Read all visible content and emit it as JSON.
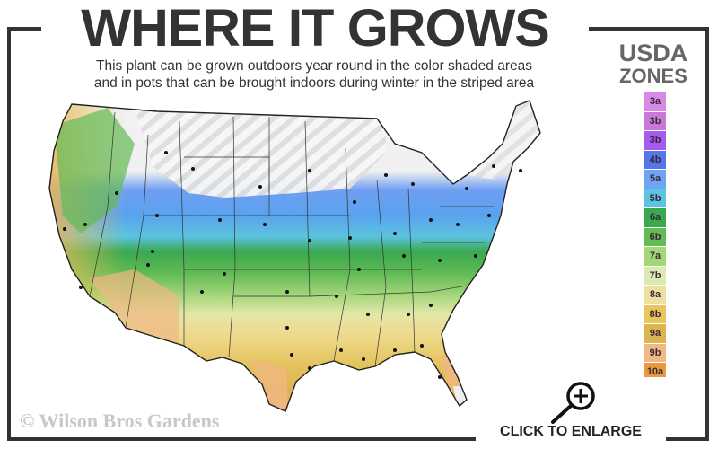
{
  "header": {
    "title": "WHERE IT GROWS",
    "subtitle_line1": "This plant can be grown outdoors year round in the color shaded areas",
    "subtitle_line2": "and in pots that can be brought indoors during winter in the striped area"
  },
  "legend": {
    "title_line1": "USDA",
    "title_line2": "ZONES",
    "zones": [
      {
        "label": "3a",
        "color": "#d889e6"
      },
      {
        "label": "3b",
        "color": "#c879d6"
      },
      {
        "label": "3b",
        "color": "#a45cf0"
      },
      {
        "label": "4b",
        "color": "#5576e8"
      },
      {
        "label": "5a",
        "color": "#6fa3f3"
      },
      {
        "label": "5b",
        "color": "#5cc3e0"
      },
      {
        "label": "6a",
        "color": "#3aa84e"
      },
      {
        "label": "6b",
        "color": "#62bb55"
      },
      {
        "label": "7a",
        "color": "#a4d67a"
      },
      {
        "label": "7b",
        "color": "#dbeab0"
      },
      {
        "label": "8a",
        "color": "#eee0a0"
      },
      {
        "label": "8b",
        "color": "#e8c65a"
      },
      {
        "label": "9a",
        "color": "#dcb552"
      },
      {
        "label": "9b",
        "color": "#f0b882"
      },
      {
        "label": "10a",
        "color": "#ea9a3c"
      },
      {
        "label": "10b",
        "color": "#e2842e"
      }
    ]
  },
  "map": {
    "region": "United States",
    "striped_area": "northern states"
  },
  "footer": {
    "copyright": "© Wilson Bros Gardens",
    "enlarge_label": "CLICK TO ENLARGE",
    "enlarge_icon": "magnifier-plus-icon"
  }
}
